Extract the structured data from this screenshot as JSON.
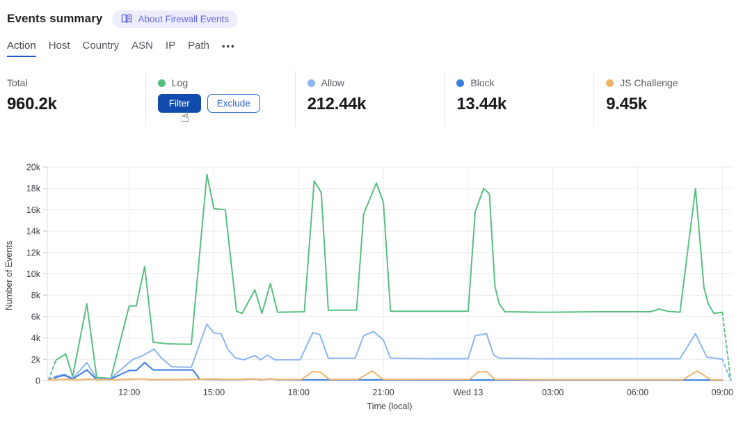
{
  "header": {
    "title": "Events summary",
    "about_badge": "About Firewall Events"
  },
  "icons": {
    "book": "open-book",
    "more_dots": "•••",
    "cursor": "☝"
  },
  "tabs": {
    "items": [
      {
        "label": "Action",
        "active": true
      },
      {
        "label": "Host",
        "active": false
      },
      {
        "label": "Country",
        "active": false
      },
      {
        "label": "ASN",
        "active": false
      },
      {
        "label": "IP",
        "active": false
      },
      {
        "label": "Path",
        "active": false
      }
    ]
  },
  "stats": {
    "total": {
      "label": "Total",
      "value": "960.2k"
    },
    "log": {
      "label": "Log",
      "color": "#53be7e",
      "filter_label": "Filter",
      "exclude_label": "Exclude"
    },
    "allow": {
      "label": "Allow",
      "value": "212.44k",
      "color": "#8cb6f0"
    },
    "block": {
      "label": "Block",
      "value": "13.44k",
      "color": "#3b7de0"
    },
    "js_challenge": {
      "label": "JS Challenge",
      "value": "9.45k",
      "color": "#f1b264"
    }
  },
  "chart_data": {
    "type": "line",
    "xlabel": "Time (local)",
    "ylabel": "Number of Events",
    "x_unit_hours_from": "approx 09:05 Tue (t=0) to 09:00 Wed (t≈24)",
    "xlim": [
      0,
      24.2
    ],
    "ylim": [
      0,
      20000
    ],
    "grid": true,
    "legend_position": "stat-cards-above",
    "y_ticks": [
      {
        "value": 0,
        "label": "0"
      },
      {
        "value": 2000,
        "label": "2k"
      },
      {
        "value": 4000,
        "label": "4k"
      },
      {
        "value": 6000,
        "label": "6k"
      },
      {
        "value": 8000,
        "label": "8k"
      },
      {
        "value": 10000,
        "label": "10k"
      },
      {
        "value": 12000,
        "label": "12k"
      },
      {
        "value": 14000,
        "label": "14k"
      },
      {
        "value": 16000,
        "label": "16k"
      },
      {
        "value": 18000,
        "label": "18k"
      },
      {
        "value": 20000,
        "label": "20k"
      }
    ],
    "x_ticks": [
      {
        "t": 2.85,
        "label": "12:00"
      },
      {
        "t": 5.85,
        "label": "15:00"
      },
      {
        "t": 8.85,
        "label": "18:00"
      },
      {
        "t": 11.85,
        "label": "21:00"
      },
      {
        "t": 14.85,
        "label": "Wed 13"
      },
      {
        "t": 17.85,
        "label": "03:00"
      },
      {
        "t": 20.85,
        "label": "06:00"
      },
      {
        "t": 23.85,
        "label": "09:00"
      }
    ],
    "series": [
      {
        "name": "Log",
        "color": "#56bf80",
        "lead_dash": [
          [
            0,
            100
          ],
          [
            0.25,
            1900
          ]
        ],
        "tail_dash": [
          [
            23.85,
            6400
          ],
          [
            24.15,
            0
          ]
        ],
        "points": [
          [
            0.25,
            1900
          ],
          [
            0.6,
            2500
          ],
          [
            0.85,
            400
          ],
          [
            1.35,
            7200
          ],
          [
            1.7,
            300
          ],
          [
            2.2,
            200
          ],
          [
            2.85,
            7000
          ],
          [
            3.1,
            7000
          ],
          [
            3.4,
            10700
          ],
          [
            3.7,
            3600
          ],
          [
            4.2,
            3450
          ],
          [
            5.05,
            3400
          ],
          [
            5.6,
            19300
          ],
          [
            5.85,
            16100
          ],
          [
            6.25,
            16000
          ],
          [
            6.65,
            6500
          ],
          [
            6.85,
            6300
          ],
          [
            7.3,
            8500
          ],
          [
            7.55,
            6300
          ],
          [
            7.85,
            9100
          ],
          [
            8.1,
            6400
          ],
          [
            9.05,
            6450
          ],
          [
            9.4,
            18700
          ],
          [
            9.65,
            17600
          ],
          [
            9.9,
            6600
          ],
          [
            10.9,
            6600
          ],
          [
            11.15,
            15600
          ],
          [
            11.6,
            18500
          ],
          [
            11.85,
            16700
          ],
          [
            12.1,
            6500
          ],
          [
            13.5,
            6500
          ],
          [
            14.85,
            6500
          ],
          [
            15.1,
            15800
          ],
          [
            15.4,
            18000
          ],
          [
            15.6,
            17500
          ],
          [
            15.8,
            8800
          ],
          [
            15.95,
            7200
          ],
          [
            16.15,
            6450
          ],
          [
            17.5,
            6400
          ],
          [
            19.5,
            6450
          ],
          [
            21.3,
            6450
          ],
          [
            21.6,
            6700
          ],
          [
            21.9,
            6500
          ],
          [
            22.35,
            6400
          ],
          [
            22.9,
            18000
          ],
          [
            23.2,
            8700
          ],
          [
            23.35,
            7200
          ],
          [
            23.55,
            6300
          ],
          [
            23.85,
            6400
          ]
        ]
      },
      {
        "name": "Allow",
        "color": "#8ab6f0",
        "lead_dash": [
          [
            0,
            150
          ],
          [
            0.25,
            400
          ]
        ],
        "tail_dash": [
          [
            23.85,
            2000
          ],
          [
            24.15,
            0
          ]
        ],
        "points": [
          [
            0.25,
            400
          ],
          [
            0.55,
            600
          ],
          [
            0.85,
            200
          ],
          [
            1.35,
            1700
          ],
          [
            1.7,
            150
          ],
          [
            2.2,
            200
          ],
          [
            2.8,
            1600
          ],
          [
            3.0,
            2000
          ],
          [
            3.3,
            2300
          ],
          [
            3.73,
            2950
          ],
          [
            4.0,
            2100
          ],
          [
            4.35,
            1300
          ],
          [
            5.05,
            1250
          ],
          [
            5.6,
            5300
          ],
          [
            5.85,
            4450
          ],
          [
            6.1,
            4400
          ],
          [
            6.35,
            2900
          ],
          [
            6.6,
            2150
          ],
          [
            6.9,
            1950
          ],
          [
            7.3,
            2350
          ],
          [
            7.5,
            1950
          ],
          [
            7.75,
            2400
          ],
          [
            8.0,
            1950
          ],
          [
            8.9,
            1950
          ],
          [
            9.35,
            4500
          ],
          [
            9.6,
            4300
          ],
          [
            9.9,
            2100
          ],
          [
            10.85,
            2100
          ],
          [
            11.15,
            4200
          ],
          [
            11.5,
            4600
          ],
          [
            11.85,
            3800
          ],
          [
            12.1,
            2100
          ],
          [
            13.5,
            2050
          ],
          [
            14.85,
            2050
          ],
          [
            15.1,
            4200
          ],
          [
            15.5,
            4400
          ],
          [
            15.75,
            2400
          ],
          [
            15.95,
            2100
          ],
          [
            17.5,
            2050
          ],
          [
            20,
            2050
          ],
          [
            22.35,
            2050
          ],
          [
            22.9,
            4400
          ],
          [
            23.3,
            2200
          ],
          [
            23.85,
            2000
          ]
        ]
      },
      {
        "name": "Block",
        "color": "#3a7ce0",
        "lead_dash": [
          [
            0,
            100
          ],
          [
            0.25,
            300
          ]
        ],
        "points": [
          [
            0.25,
            300
          ],
          [
            0.55,
            500
          ],
          [
            0.85,
            150
          ],
          [
            1.35,
            1000
          ],
          [
            1.7,
            100
          ],
          [
            2.2,
            150
          ],
          [
            2.85,
            950
          ],
          [
            3.1,
            950
          ],
          [
            3.4,
            1700
          ],
          [
            3.7,
            1000
          ],
          [
            5.1,
            1000
          ],
          [
            5.35,
            130
          ],
          [
            6.5,
            100
          ],
          [
            7.3,
            150
          ],
          [
            7.55,
            80
          ],
          [
            7.8,
            160
          ],
          [
            8.2,
            80
          ],
          [
            12,
            70
          ],
          [
            16,
            60
          ],
          [
            20,
            60
          ],
          [
            22.4,
            60
          ],
          [
            23.85,
            50
          ]
        ]
      },
      {
        "name": "JS Challenge",
        "color": "#f0b468",
        "points": [
          [
            0,
            80
          ],
          [
            0.6,
            130
          ],
          [
            1.0,
            80
          ],
          [
            1.45,
            130
          ],
          [
            2.2,
            80
          ],
          [
            3.3,
            160
          ],
          [
            3.6,
            100
          ],
          [
            4.5,
            100
          ],
          [
            5.3,
            130
          ],
          [
            5.9,
            150
          ],
          [
            6.4,
            110
          ],
          [
            7.3,
            150
          ],
          [
            7.6,
            100
          ],
          [
            7.85,
            150
          ],
          [
            8.3,
            100
          ],
          [
            8.95,
            110
          ],
          [
            9.35,
            850
          ],
          [
            9.6,
            800
          ],
          [
            9.95,
            110
          ],
          [
            10.95,
            120
          ],
          [
            11.45,
            900
          ],
          [
            11.85,
            110
          ],
          [
            14.9,
            110
          ],
          [
            15.2,
            800
          ],
          [
            15.5,
            850
          ],
          [
            15.8,
            110
          ],
          [
            17.5,
            90
          ],
          [
            20,
            90
          ],
          [
            22.45,
            90
          ],
          [
            22.95,
            900
          ],
          [
            23.45,
            80
          ],
          [
            23.85,
            80
          ]
        ]
      }
    ]
  }
}
